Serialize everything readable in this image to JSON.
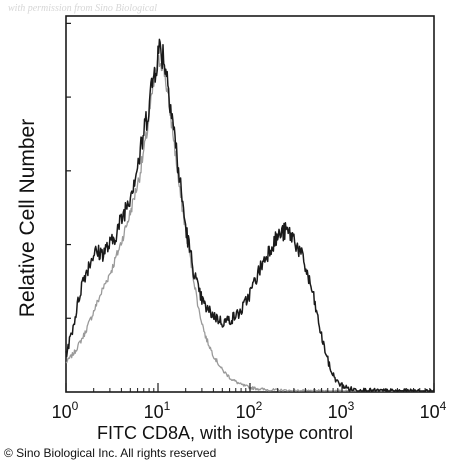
{
  "watermark": "with permission from Sino Biological",
  "copyright": "© Sino Biological Inc. All rights reserved",
  "chart_data": {
    "type": "line",
    "xlabel": "FITC CD8A, with isotype control",
    "ylabel": "Relative Cell Number",
    "x_scale": "log",
    "xlim": [
      1,
      10000
    ],
    "ylim": [
      0,
      1
    ],
    "x_ticks": [
      {
        "value": 1,
        "base": "10",
        "exp": "0"
      },
      {
        "value": 10,
        "base": "10",
        "exp": "1"
      },
      {
        "value": 100,
        "base": "10",
        "exp": "2"
      },
      {
        "value": 1000,
        "base": "10",
        "exp": "3"
      },
      {
        "value": 10000,
        "base": "10",
        "exp": "4"
      }
    ],
    "series": [
      {
        "role": "isotype control",
        "color": "#9a9a9a",
        "points": [
          [
            1.0,
            0.08
          ],
          [
            1.25,
            0.11
          ],
          [
            1.6,
            0.16
          ],
          [
            2.0,
            0.22
          ],
          [
            2.5,
            0.28
          ],
          [
            3.2,
            0.34
          ],
          [
            4.0,
            0.41
          ],
          [
            5.0,
            0.49
          ],
          [
            6.3,
            0.59
          ],
          [
            7.5,
            0.7
          ],
          [
            8.5,
            0.8
          ],
          [
            9.5,
            0.88
          ],
          [
            10.5,
            0.91
          ],
          [
            11.5,
            0.89
          ],
          [
            13.0,
            0.8
          ],
          [
            15.0,
            0.68
          ],
          [
            17.0,
            0.56
          ],
          [
            20.0,
            0.44
          ],
          [
            24.0,
            0.32
          ],
          [
            28.0,
            0.22
          ],
          [
            33.0,
            0.15
          ],
          [
            40.0,
            0.1
          ],
          [
            50.0,
            0.06
          ],
          [
            63.0,
            0.035
          ],
          [
            80.0,
            0.02
          ],
          [
            100.0,
            0.012
          ],
          [
            150.0,
            0.006
          ],
          [
            300.0,
            0.003
          ],
          [
            1000.0,
            0.002
          ],
          [
            10000.0,
            0.0
          ]
        ]
      },
      {
        "role": "CD8A",
        "color": "#1a1a1a",
        "points": [
          [
            1.0,
            0.1
          ],
          [
            1.2,
            0.18
          ],
          [
            1.5,
            0.3
          ],
          [
            2.0,
            0.38
          ],
          [
            2.5,
            0.38
          ],
          [
            3.2,
            0.41
          ],
          [
            4.0,
            0.47
          ],
          [
            5.0,
            0.54
          ],
          [
            6.3,
            0.64
          ],
          [
            7.5,
            0.75
          ],
          [
            8.5,
            0.83
          ],
          [
            9.5,
            0.9
          ],
          [
            10.5,
            0.94
          ],
          [
            11.5,
            0.92
          ],
          [
            13.0,
            0.84
          ],
          [
            15.0,
            0.71
          ],
          [
            17.0,
            0.59
          ],
          [
            20.0,
            0.45
          ],
          [
            24.0,
            0.34
          ],
          [
            28.0,
            0.27
          ],
          [
            33.0,
            0.23
          ],
          [
            40.0,
            0.21
          ],
          [
            50.0,
            0.19
          ],
          [
            63.0,
            0.2
          ],
          [
            80.0,
            0.22
          ],
          [
            100.0,
            0.27
          ],
          [
            130.0,
            0.34
          ],
          [
            170.0,
            0.4
          ],
          [
            210.0,
            0.43
          ],
          [
            250.0,
            0.44
          ],
          [
            300.0,
            0.42
          ],
          [
            380.0,
            0.36
          ],
          [
            480.0,
            0.27
          ],
          [
            600.0,
            0.15
          ],
          [
            750.0,
            0.06
          ],
          [
            900.0,
            0.025
          ],
          [
            1200.0,
            0.008
          ],
          [
            2000.0,
            0.003
          ],
          [
            10000.0,
            0.0
          ]
        ]
      }
    ]
  }
}
